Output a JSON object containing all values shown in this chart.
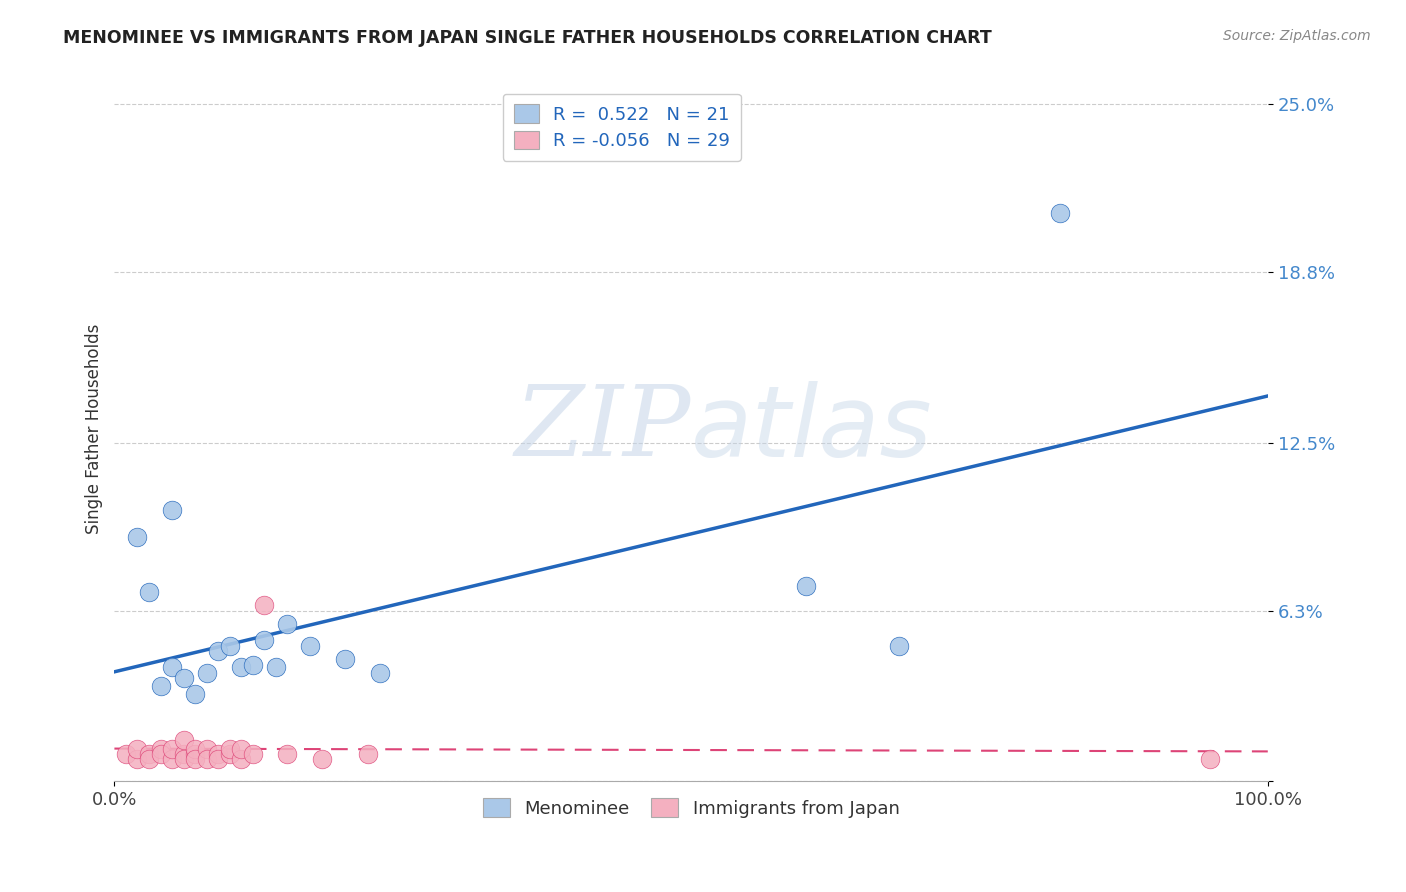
{
  "title": "MENOMINEE VS IMMIGRANTS FROM JAPAN SINGLE FATHER HOUSEHOLDS CORRELATION CHART",
  "source": "Source: ZipAtlas.com",
  "ylabel": "Single Father Households",
  "xlim": [
    0,
    1.0
  ],
  "ylim": [
    0,
    0.26
  ],
  "ytick_positions": [
    0.0,
    0.063,
    0.125,
    0.188,
    0.25
  ],
  "ytick_labels": [
    "",
    "6.3%",
    "12.5%",
    "18.8%",
    "25.0%"
  ],
  "xtick_positions": [
    0.0,
    1.0
  ],
  "xtick_labels": [
    "0.0%",
    "100.0%"
  ],
  "menominee_R": 0.522,
  "menominee_N": 21,
  "japan_R": -0.056,
  "japan_N": 29,
  "menominee_x": [
    0.02,
    0.03,
    0.04,
    0.05,
    0.06,
    0.07,
    0.08,
    0.09,
    0.1,
    0.11,
    0.12,
    0.13,
    0.14,
    0.15,
    0.17,
    0.2,
    0.23,
    0.6,
    0.68,
    0.82,
    0.05
  ],
  "menominee_y": [
    0.09,
    0.07,
    0.035,
    0.042,
    0.038,
    0.032,
    0.04,
    0.048,
    0.05,
    0.042,
    0.043,
    0.052,
    0.042,
    0.058,
    0.05,
    0.045,
    0.04,
    0.072,
    0.05,
    0.21,
    0.1
  ],
  "japan_x": [
    0.01,
    0.02,
    0.02,
    0.03,
    0.03,
    0.04,
    0.04,
    0.05,
    0.05,
    0.06,
    0.06,
    0.06,
    0.07,
    0.07,
    0.07,
    0.08,
    0.08,
    0.09,
    0.09,
    0.1,
    0.1,
    0.11,
    0.11,
    0.12,
    0.13,
    0.15,
    0.18,
    0.22,
    0.95
  ],
  "japan_y": [
    0.01,
    0.008,
    0.012,
    0.01,
    0.008,
    0.012,
    0.01,
    0.008,
    0.012,
    0.01,
    0.015,
    0.008,
    0.01,
    0.012,
    0.008,
    0.012,
    0.008,
    0.01,
    0.008,
    0.01,
    0.012,
    0.008,
    0.012,
    0.01,
    0.065,
    0.01,
    0.008,
    0.01,
    0.008
  ],
  "menominee_color": "#aac8e8",
  "menominee_line_color": "#2266bb",
  "japan_color": "#f4b0c0",
  "japan_line_color": "#dd4477",
  "background_color": "#ffffff",
  "grid_color": "#cccccc",
  "watermark_zip": "ZIP",
  "watermark_atlas": "atlas"
}
